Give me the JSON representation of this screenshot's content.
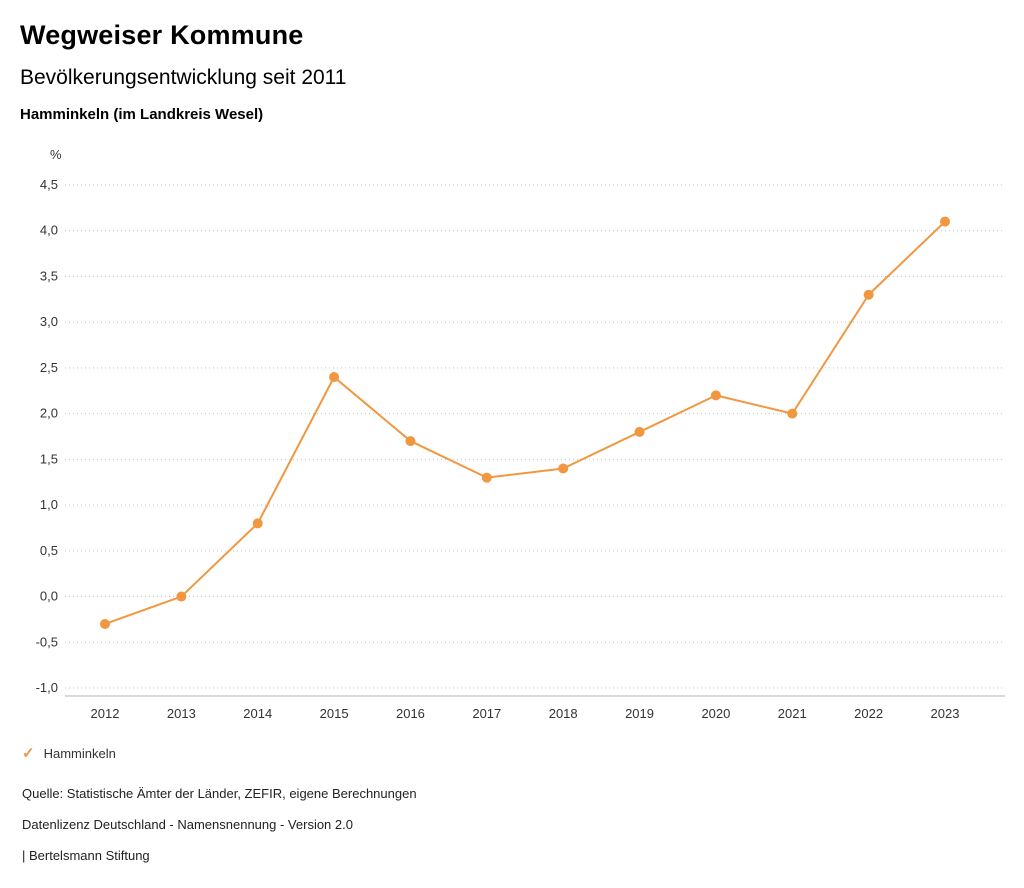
{
  "header": {
    "title": "Wegweiser Kommune",
    "subtitle": "Bevölkerungsentwicklung seit 2011",
    "region": "Hamminkeln (im Landkreis Wesel)"
  },
  "chart_data": {
    "type": "line",
    "title": "Bevölkerungsentwicklung seit 2011",
    "unit_label": "%",
    "categories": [
      "2012",
      "2013",
      "2014",
      "2015",
      "2016",
      "2017",
      "2018",
      "2019",
      "2020",
      "2021",
      "2022",
      "2023"
    ],
    "series": [
      {
        "name": "Hamminkeln",
        "values": [
          -0.3,
          0.0,
          0.8,
          2.4,
          1.7,
          1.3,
          1.4,
          1.8,
          2.2,
          2.0,
          3.3,
          4.1
        ]
      }
    ],
    "ylim": [
      -1.0,
      4.5
    ],
    "ytick_step": 0.5,
    "ytick_labels": [
      "4,5",
      "4,0",
      "3,5",
      "3,0",
      "2,5",
      "2,0",
      "1,5",
      "1,0",
      "0,5",
      "0,0",
      "-0,5",
      "-1,0"
    ],
    "grid": "horizontal-dotted",
    "legend_position": "bottom-left",
    "line_color": "#F0973F",
    "grid_color": "#c4c4c4",
    "axis_color": "#b3b3b3"
  },
  "legend": {
    "items": [
      {
        "label": "Hamminkeln",
        "color": "#F0973F",
        "icon": "check"
      }
    ]
  },
  "footer": {
    "lines": [
      "Quelle: Statistische Ämter der Länder, ZEFIR, eigene Berechnungen",
      "Datenlizenz Deutschland - Namensnennung - Version 2.0",
      "| Bertelsmann Stiftung"
    ]
  }
}
